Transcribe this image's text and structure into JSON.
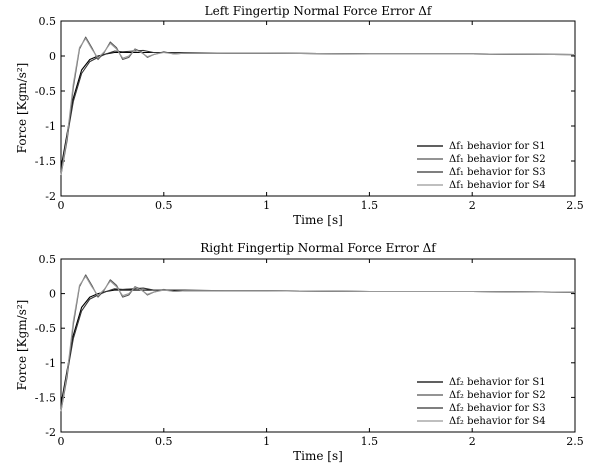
{
  "chart_data": [
    {
      "type": "line",
      "title": "Left Fingertip Normal Force Error Δf",
      "xlabel": "Time [s]",
      "ylabel": "Force [Kgm/s²]",
      "xlim": [
        0,
        2.5
      ],
      "ylim": [
        -2,
        0.5
      ],
      "xticks": [
        "0",
        "0.5",
        "1",
        "1.5",
        "2",
        "2.5"
      ],
      "yticks": [
        "0.5",
        "0",
        "-0.5",
        "-1",
        "-1.5",
        "-2"
      ],
      "grid": false,
      "legend_position": "bottom-right",
      "series": [
        {
          "name": "Δf₁ behavior for S1",
          "color": "#000000",
          "x": [
            0,
            0.03,
            0.06,
            0.1,
            0.14,
            0.18,
            0.22,
            0.26,
            0.3,
            0.35,
            0.4,
            0.5,
            0.6,
            0.8,
            1.0,
            1.5,
            2.0,
            2.5
          ],
          "y": [
            -1.6,
            -1.1,
            -0.6,
            -0.2,
            -0.05,
            0.0,
            0.03,
            0.05,
            0.05,
            0.05,
            0.05,
            0.05,
            0.04,
            0.04,
            0.04,
            0.03,
            0.03,
            0.02
          ]
        },
        {
          "name": "Δf₁ behavior for S2",
          "color": "#555555",
          "x": [
            0,
            0.03,
            0.06,
            0.09,
            0.12,
            0.15,
            0.18,
            0.21,
            0.24,
            0.27,
            0.3,
            0.33,
            0.36,
            0.39,
            0.42,
            0.45,
            0.5,
            0.55,
            0.6,
            0.8,
            1.0,
            1.5,
            2.0,
            2.5
          ],
          "y": [
            -1.7,
            -1.2,
            -0.45,
            0.1,
            0.27,
            0.12,
            -0.05,
            0.05,
            0.2,
            0.12,
            -0.05,
            -0.02,
            0.1,
            0.06,
            -0.02,
            0.02,
            0.06,
            0.03,
            0.04,
            0.04,
            0.04,
            0.03,
            0.03,
            0.02
          ]
        },
        {
          "name": "Δf₁ behavior for S3",
          "color": "#333333",
          "x": [
            0,
            0.03,
            0.06,
            0.1,
            0.14,
            0.18,
            0.22,
            0.26,
            0.3,
            0.35,
            0.4,
            0.45,
            0.5,
            0.6,
            0.8,
            1.0,
            1.5,
            2.0,
            2.5
          ],
          "y": [
            -1.65,
            -1.15,
            -0.65,
            -0.25,
            -0.08,
            -0.02,
            0.03,
            0.07,
            0.06,
            0.07,
            0.08,
            0.05,
            0.05,
            0.05,
            0.04,
            0.04,
            0.03,
            0.03,
            0.02
          ]
        },
        {
          "name": "Δf₁ behavior for S4",
          "color": "#999999",
          "x": [
            0,
            0.03,
            0.06,
            0.09,
            0.12,
            0.15,
            0.18,
            0.21,
            0.24,
            0.27,
            0.3,
            0.33,
            0.36,
            0.39,
            0.42,
            0.45,
            0.5,
            0.55,
            0.6,
            0.8,
            1.0,
            1.5,
            2.0,
            2.5
          ],
          "y": [
            -1.7,
            -1.15,
            -0.4,
            0.12,
            0.25,
            0.1,
            -0.03,
            0.06,
            0.18,
            0.1,
            -0.03,
            0.0,
            0.09,
            0.05,
            -0.01,
            0.02,
            0.05,
            0.03,
            0.04,
            0.04,
            0.04,
            0.03,
            0.03,
            0.02
          ]
        }
      ]
    },
    {
      "type": "line",
      "title": "Right Fingertip Normal Force Error Δf",
      "xlabel": "Time [s]",
      "ylabel": "Force [Kgm/s²]",
      "xlim": [
        0,
        2.5
      ],
      "ylim": [
        -2,
        0.5
      ],
      "xticks": [
        "0",
        "0.5",
        "1",
        "1.5",
        "2",
        "2.5"
      ],
      "yticks": [
        "0.5",
        "0",
        "-0.5",
        "-1",
        "-1.5",
        "-2"
      ],
      "grid": false,
      "legend_position": "bottom-right",
      "series": [
        {
          "name": "Δf₂ behavior for S1",
          "color": "#000000",
          "x": [
            0,
            0.03,
            0.06,
            0.1,
            0.14,
            0.18,
            0.22,
            0.26,
            0.3,
            0.35,
            0.4,
            0.5,
            0.6,
            0.8,
            1.0,
            1.5,
            2.0,
            2.5
          ],
          "y": [
            -1.6,
            -1.1,
            -0.6,
            -0.2,
            -0.05,
            0.0,
            0.03,
            0.05,
            0.05,
            0.05,
            0.05,
            0.05,
            0.04,
            0.04,
            0.04,
            0.03,
            0.03,
            0.02
          ]
        },
        {
          "name": "Δf₂ behavior for S2",
          "color": "#555555",
          "x": [
            0,
            0.03,
            0.06,
            0.09,
            0.12,
            0.15,
            0.18,
            0.21,
            0.24,
            0.27,
            0.3,
            0.33,
            0.36,
            0.39,
            0.42,
            0.45,
            0.5,
            0.55,
            0.6,
            0.8,
            1.0,
            1.5,
            2.0,
            2.5
          ],
          "y": [
            -1.7,
            -1.2,
            -0.45,
            0.1,
            0.27,
            0.12,
            -0.05,
            0.05,
            0.2,
            0.12,
            -0.05,
            -0.02,
            0.1,
            0.06,
            -0.02,
            0.02,
            0.06,
            0.03,
            0.04,
            0.04,
            0.04,
            0.03,
            0.03,
            0.02
          ]
        },
        {
          "name": "Δf₂ behavior for S3",
          "color": "#333333",
          "x": [
            0,
            0.03,
            0.06,
            0.1,
            0.14,
            0.18,
            0.22,
            0.26,
            0.3,
            0.35,
            0.4,
            0.45,
            0.5,
            0.6,
            0.8,
            1.0,
            1.5,
            2.0,
            2.5
          ],
          "y": [
            -1.65,
            -1.15,
            -0.65,
            -0.25,
            -0.08,
            -0.02,
            0.03,
            0.07,
            0.06,
            0.07,
            0.08,
            0.05,
            0.05,
            0.05,
            0.04,
            0.04,
            0.03,
            0.03,
            0.02
          ]
        },
        {
          "name": "Δf₂ behavior for S4",
          "color": "#999999",
          "x": [
            0,
            0.03,
            0.06,
            0.09,
            0.12,
            0.15,
            0.18,
            0.21,
            0.24,
            0.27,
            0.3,
            0.33,
            0.36,
            0.39,
            0.42,
            0.45,
            0.5,
            0.55,
            0.6,
            0.8,
            1.0,
            1.5,
            2.0,
            2.5
          ],
          "y": [
            -1.7,
            -1.15,
            -0.4,
            0.12,
            0.25,
            0.1,
            -0.03,
            0.06,
            0.18,
            0.1,
            -0.03,
            0.0,
            0.09,
            0.05,
            -0.01,
            0.02,
            0.05,
            0.03,
            0.04,
            0.04,
            0.04,
            0.03,
            0.03,
            0.02
          ]
        }
      ]
    }
  ]
}
